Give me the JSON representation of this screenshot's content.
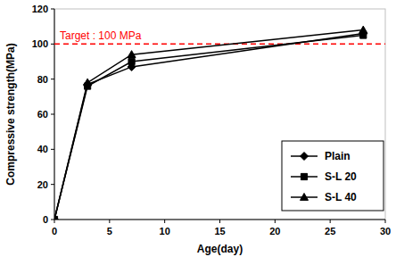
{
  "chart_data": {
    "type": "line",
    "x_label": "Age(day)",
    "y_label": "Compressive strength(MPa)",
    "x": [
      0,
      3,
      7,
      28
    ],
    "series": [
      {
        "name": "Plain",
        "color": "#000000",
        "marker": "diamond",
        "values": [
          0,
          77,
          87,
          106
        ]
      },
      {
        "name": "S-L 20",
        "color": "#000000",
        "marker": "square",
        "values": [
          0,
          76,
          90,
          105
        ]
      },
      {
        "name": "S-L 40",
        "color": "#000000",
        "marker": "triangle",
        "values": [
          0,
          78,
          94,
          108
        ]
      }
    ],
    "xlim": [
      0,
      30
    ],
    "xticks": [
      0,
      5,
      10,
      15,
      20,
      25,
      30
    ],
    "ylim": [
      0,
      120
    ],
    "yticks": [
      0,
      20,
      40,
      60,
      80,
      100,
      120
    ],
    "grid": false,
    "legend": "lower right",
    "annotations": [
      {
        "text": "Target : 100 MPa",
        "value": 100,
        "color": "#ff0000",
        "line_style": "dashed"
      }
    ]
  }
}
